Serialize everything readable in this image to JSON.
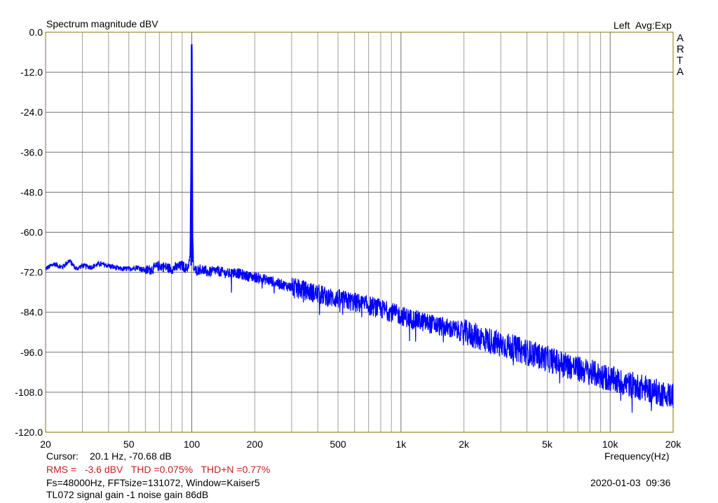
{
  "header": {
    "title": "Spectrum magnitude dBV",
    "channel": "Left",
    "avg": "Avg:Exp",
    "brand_letters": [
      "A",
      "R",
      "T",
      "A"
    ]
  },
  "footer": {
    "cursor_label": "Cursor:",
    "cursor_value": "20.1 Hz, -70.68 dB",
    "rms": "RMS =   -3.6 dBV   THD =0.075%   THD+N =0.77%",
    "fft_info": "Fs=48000Hz, FFTsize=131072, Window=Kaiser5",
    "datetime": "2020-01-03  09:36",
    "note": "TL072 signal gain -1 noise gain 86dB"
  },
  "colors": {
    "trace": "#0000ff",
    "grid": "#a0a0a0",
    "axis": "#7a7a00",
    "red_text": "#c81e1e",
    "background": "#ffffff"
  },
  "chart_data": {
    "type": "line",
    "title": "Spectrum magnitude dBV",
    "xlabel": "Frequency(Hz)",
    "ylabel": "",
    "x_scale": "log",
    "xlim": [
      20,
      20000
    ],
    "ylim": [
      -120,
      0
    ],
    "grid": true,
    "x_ticks": [
      {
        "value": 20,
        "label": "20"
      },
      {
        "value": 50,
        "label": "50"
      },
      {
        "value": 100,
        "label": "100"
      },
      {
        "value": 200,
        "label": "200"
      },
      {
        "value": 500,
        "label": "500"
      },
      {
        "value": 1000,
        "label": "1k"
      },
      {
        "value": 2000,
        "label": "2k"
      },
      {
        "value": 5000,
        "label": "5k"
      },
      {
        "value": 10000,
        "label": "10k"
      },
      {
        "value": 20000,
        "label": "20k"
      }
    ],
    "y_ticks": [
      {
        "value": 0,
        "label": "0.0"
      },
      {
        "value": -12,
        "label": "-12.0"
      },
      {
        "value": -24,
        "label": "-24.0"
      },
      {
        "value": -36,
        "label": "-36.0"
      },
      {
        "value": -48,
        "label": "-48.0"
      },
      {
        "value": -60,
        "label": "-60.0"
      },
      {
        "value": -72,
        "label": "-72.0"
      },
      {
        "value": -84,
        "label": "-84.0"
      },
      {
        "value": -96,
        "label": "-96.0"
      },
      {
        "value": -108,
        "label": "-108.0"
      },
      {
        "value": -120,
        "label": "-120.0"
      }
    ],
    "series": [
      {
        "values_note_omitted": true,
        "x": [
          20,
          22,
          24,
          26,
          28,
          30,
          33,
          36,
          40,
          45,
          50,
          55,
          60,
          65,
          70,
          75,
          80,
          85,
          90,
          95,
          98,
          99,
          99.5,
          100,
          100.5,
          101,
          102,
          105,
          110,
          120,
          130,
          140,
          150,
          160,
          180,
          200,
          220,
          250,
          280,
          300,
          350,
          400,
          450,
          500,
          600,
          700,
          800,
          900,
          1000,
          1200,
          1500,
          2000,
          2500,
          3000,
          4000,
          5000,
          6000,
          7000,
          8000,
          10000,
          12000,
          15000,
          18000,
          20000
        ],
        "values": [
          -71,
          -69.5,
          -70.5,
          -68.5,
          -71,
          -70,
          -70.5,
          -69.5,
          -70,
          -71,
          -71,
          -70.5,
          -71.5,
          -71,
          -70,
          -70.5,
          -71,
          -70.5,
          -70,
          -71,
          -68,
          -40,
          -4,
          -3.6,
          -20,
          -60,
          -71,
          -71.5,
          -71,
          -72,
          -71.5,
          -72,
          -72.5,
          -72,
          -73,
          -73.5,
          -74,
          -75,
          -76,
          -76.5,
          -77.5,
          -78.5,
          -79.5,
          -80,
          -81,
          -82,
          -83,
          -84,
          -85,
          -86.5,
          -88,
          -90,
          -92,
          -93.5,
          -96,
          -98,
          -99.5,
          -101,
          -102,
          -104,
          -105.5,
          -107,
          -108.5,
          -109
        ]
      }
    ]
  }
}
